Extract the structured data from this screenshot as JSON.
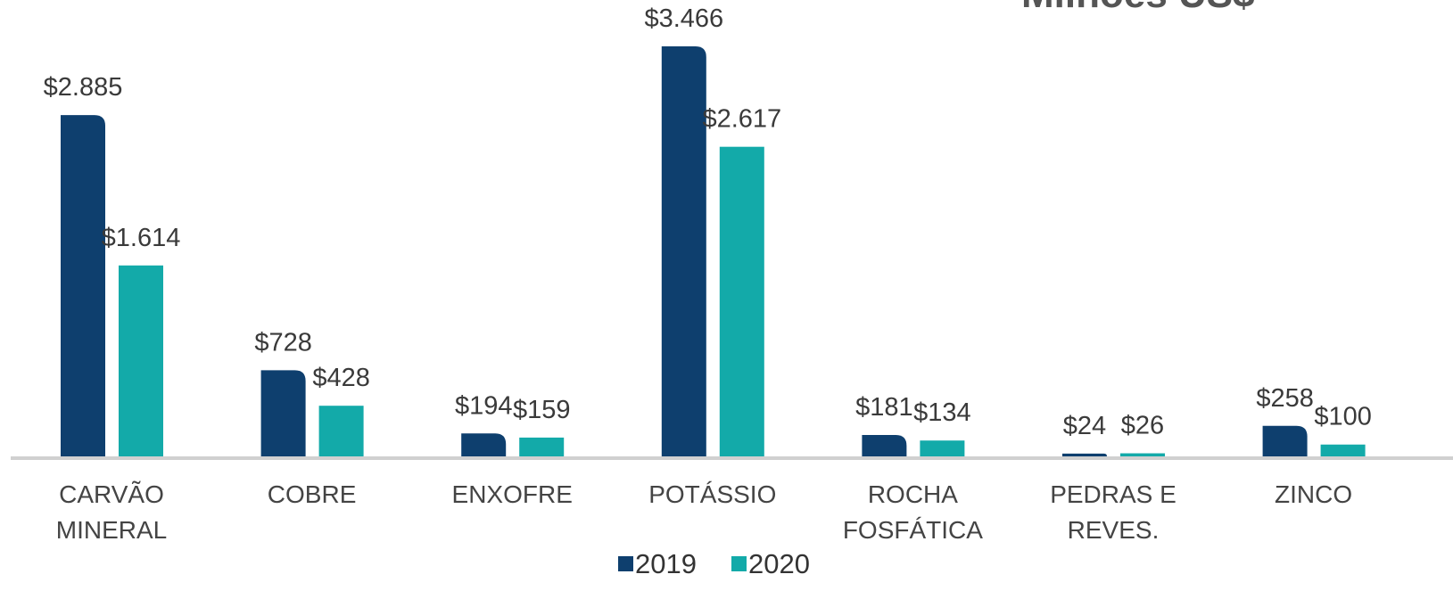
{
  "chart_data": {
    "type": "bar",
    "title": "Milhões US$",
    "categories": [
      [
        "CARVÃO",
        "MINERAL"
      ],
      [
        "COBRE"
      ],
      [
        "ENXOFRE"
      ],
      [
        "POTÁSSIO"
      ],
      [
        "ROCHA",
        "FOSFÁTICA"
      ],
      [
        "PEDRAS E",
        "REVES."
      ],
      [
        "ZINCO"
      ]
    ],
    "series": [
      {
        "name": "2019",
        "color": "#0e3f6e",
        "values": [
          2885,
          728,
          194,
          3466,
          181,
          24,
          258
        ],
        "value_labels": [
          "$2.885",
          "$728",
          "$194",
          "$3.466",
          "$181",
          "$24",
          "$258"
        ]
      },
      {
        "name": "2020",
        "color": "#13aaa9",
        "values": [
          1614,
          428,
          159,
          2617,
          134,
          26,
          100
        ],
        "value_labels": [
          "$1.614",
          "$428",
          "$159",
          "$2.617",
          "$134",
          "$26",
          "$100"
        ]
      }
    ],
    "legend": "bottom"
  }
}
